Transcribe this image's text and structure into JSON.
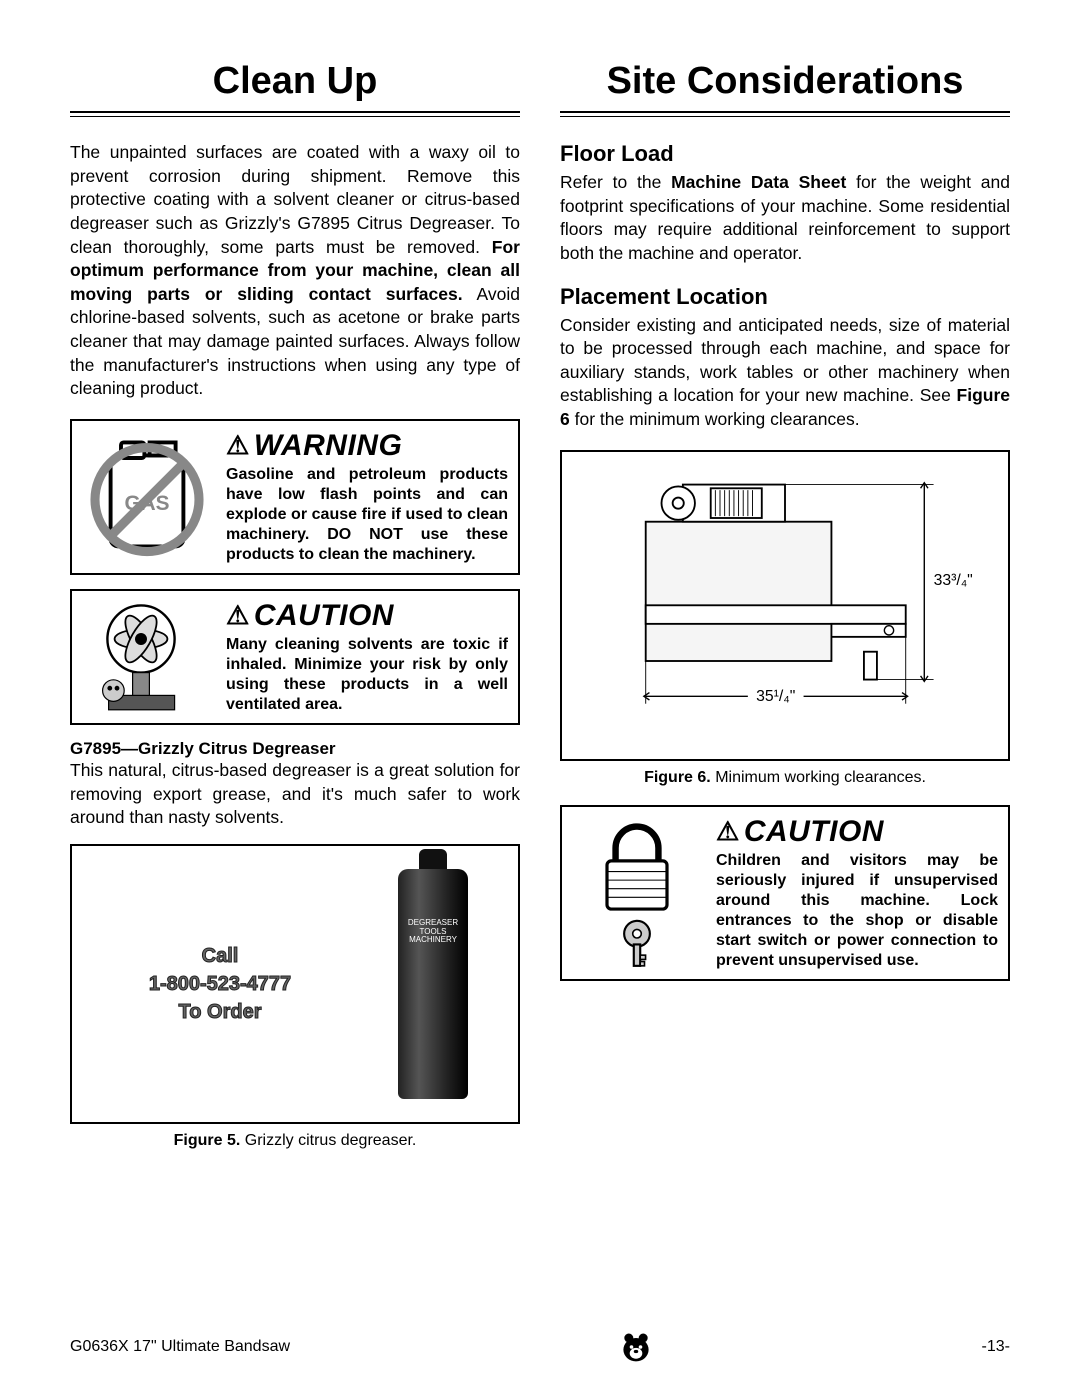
{
  "left": {
    "heading": "Clean Up",
    "intro_html": "The unpainted surfaces are coated with a waxy oil to prevent corrosion during shipment. Remove this protective coating with a solvent cleaner or citrus-based degreaser such as Grizzly's G7895 Citrus Degreaser. To clean thoroughly, some parts must be removed. <b>For optimum performance from your machine, clean all moving parts or sliding contact surfaces.</b> Avoid chlorine-based solvents, such as acetone or brake parts cleaner that may damage painted surfaces. Always follow the manufacturer's instructions when using any type of cleaning product.",
    "warning": {
      "title": "WARNING",
      "text": "Gasoline and petroleum products have low flash points and can explode or cause fire if used to clean machinery. DO NOT use these products to clean the machinery.",
      "icon_label": "GAS"
    },
    "caution1": {
      "title": "CAUTION",
      "text": "Many cleaning solvents are toxic if inhaled. Minimize your risk by only using these products in a well ventilated area."
    },
    "product": {
      "title": "G7895—Grizzly Citrus Degreaser",
      "desc": "This natural, citrus-based degreaser is a great solution for removing export grease, and it's much safer to work around than nasty solvents."
    },
    "order_box": {
      "line1": "Call",
      "line2": "1-800-523-4777",
      "line3": "To Order",
      "can_label": "DEGREASER\nTOOLS\nMACHINERY"
    },
    "fig5_html": "<b>Figure 5.</b> Grizzly citrus degreaser."
  },
  "right": {
    "heading": "Site Considerations",
    "floor": {
      "title": "Floor Load",
      "text_html": "Refer to the <b>Machine Data Sheet</b> for the weight and footprint specifications of your machine. Some residential floors may require additional reinforcement to support both the machine and operator."
    },
    "placement": {
      "title": "Placement Location",
      "text_html": "Consider existing and anticipated needs, size of material to be processed through each machine, and space for auxiliary stands, work tables or other machinery when establishing a location for your new machine. See <b>Figure 6</b> for the minimum working clearances."
    },
    "diagram": {
      "dim_h": "33³/₄\"",
      "dim_w": "35¹/₄\""
    },
    "fig6_html": "<b>Figure 6.</b> Minimum working clearances.",
    "caution2": {
      "title": "CAUTION",
      "text": "Children and visitors may be seriously injured if unsuper­vised around this machine. Lock entrances to the shop or disable start switch or power connection to prevent unsupervised use."
    }
  },
  "footer": {
    "left": "G0636X 17\" Ultimate Bandsaw",
    "right": "-13-"
  }
}
